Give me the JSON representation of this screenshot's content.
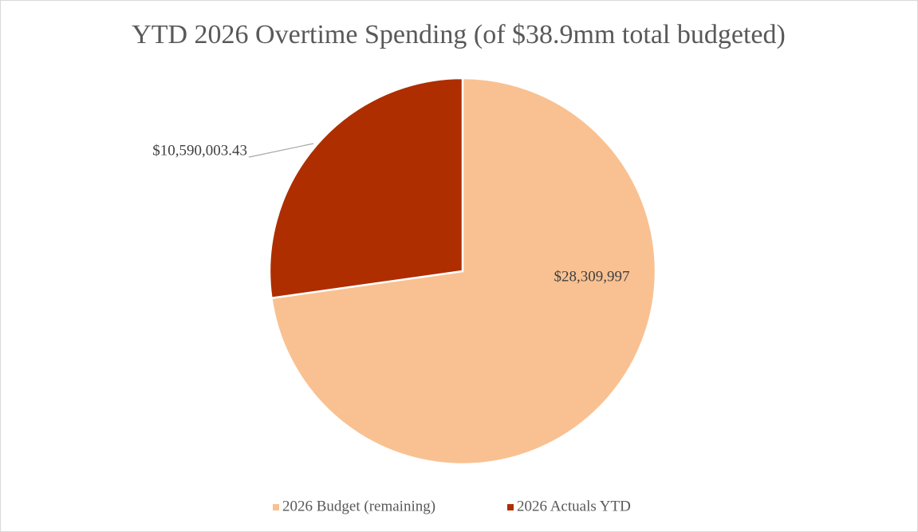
{
  "chart_data": {
    "type": "pie",
    "title": "YTD 2026 Overtime Spending (of $38.9mm total budgeted)",
    "categories": [
      "2026 Budget (remaining)",
      "2026 Actuals YTD"
    ],
    "values": [
      28309997,
      10590003.43
    ],
    "value_labels": [
      "$28,309,997",
      "$10,590,003.43"
    ],
    "colors": [
      "#F9C191",
      "#AE2E00"
    ],
    "legend": "bottom"
  }
}
